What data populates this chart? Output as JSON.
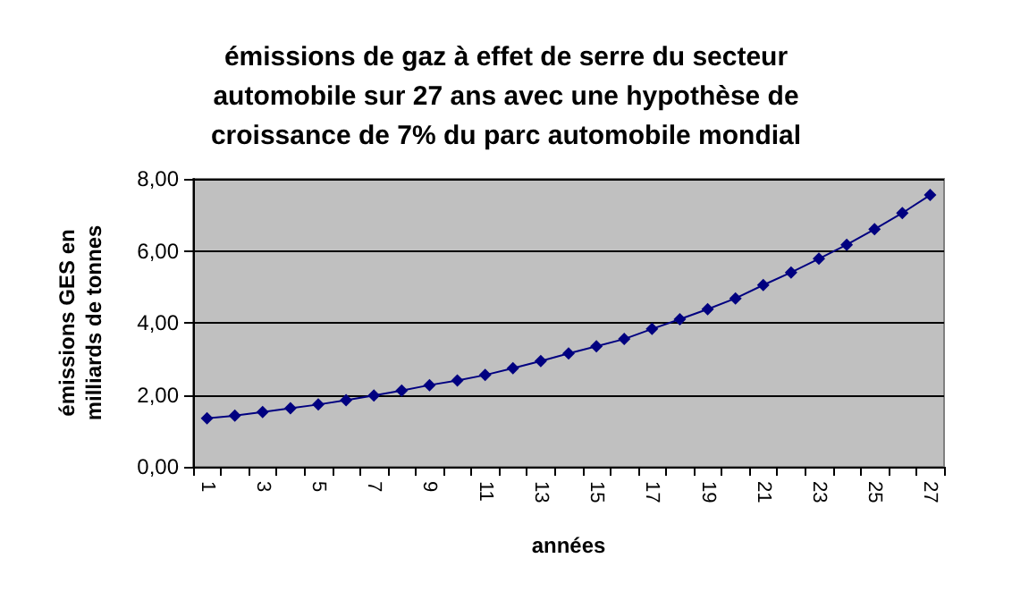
{
  "chart_data": {
    "type": "line",
    "title": "émissions de gaz à effet de serre du secteur\nautomobile sur 27 ans avec une hypothèse de\ncroissance de 7% du parc automobile mondial",
    "xlabel": "années",
    "ylabel": "émissions GES en\nmilliards de tonnes",
    "categories": [
      "1",
      null,
      "3",
      null,
      "5",
      null,
      "7",
      null,
      "9",
      null,
      "11",
      null,
      "13",
      null,
      "15",
      null,
      "17",
      null,
      "19",
      null,
      "21",
      null,
      "23",
      null,
      "25",
      null,
      "27"
    ],
    "series": [
      {
        "color": "#000080",
        "values": [
          1.35,
          1.42,
          1.52,
          1.63,
          1.73,
          1.85,
          1.98,
          2.12,
          2.27,
          2.4,
          2.55,
          2.74,
          2.94,
          3.15,
          3.35,
          3.55,
          3.83,
          4.1,
          4.38,
          4.68,
          5.05,
          5.4,
          5.78,
          6.17,
          6.6,
          7.05,
          7.55
        ]
      }
    ],
    "ylim": [
      0,
      8
    ],
    "yticks": [
      {
        "value": 0,
        "label": "0,00"
      },
      {
        "value": 2,
        "label": "2,00"
      },
      {
        "value": 4,
        "label": "4,00"
      },
      {
        "value": 6,
        "label": "6,00"
      },
      {
        "value": 8,
        "label": "8,00"
      }
    ],
    "grid": "y",
    "marker": "diamond",
    "line_style": "solid"
  }
}
